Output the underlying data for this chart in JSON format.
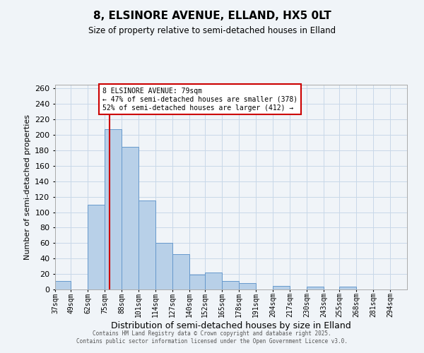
{
  "title": "8, ELSINORE AVENUE, ELLAND, HX5 0LT",
  "subtitle": "Size of property relative to semi-detached houses in Elland",
  "xlabel": "Distribution of semi-detached houses by size in Elland",
  "ylabel": "Number of semi-detached properties",
  "bar_labels": [
    "37sqm",
    "49sqm",
    "62sqm",
    "75sqm",
    "88sqm",
    "101sqm",
    "114sqm",
    "127sqm",
    "140sqm",
    "152sqm",
    "165sqm",
    "178sqm",
    "191sqm",
    "204sqm",
    "217sqm",
    "230sqm",
    "243sqm",
    "255sqm",
    "268sqm",
    "281sqm",
    "294sqm"
  ],
  "bar_values": [
    11,
    0,
    110,
    207,
    185,
    115,
    60,
    46,
    19,
    22,
    11,
    8,
    0,
    5,
    0,
    4,
    0,
    4,
    0,
    0,
    0
  ],
  "bar_color": "#b8d0e8",
  "bar_edge_color": "#6699cc",
  "vline_x": 79,
  "bin_edges": [
    37,
    49,
    62,
    75,
    88,
    101,
    114,
    127,
    140,
    152,
    165,
    178,
    191,
    204,
    217,
    230,
    243,
    255,
    268,
    281,
    294,
    307
  ],
  "annotation_title": "8 ELSINORE AVENUE: 79sqm",
  "annotation_line1": "← 47% of semi-detached houses are smaller (378)",
  "annotation_line2": "52% of semi-detached houses are larger (412) →",
  "annotation_box_color": "#cc0000",
  "ylim": [
    0,
    265
  ],
  "yticks": [
    0,
    20,
    40,
    60,
    80,
    100,
    120,
    140,
    160,
    180,
    200,
    220,
    240,
    260
  ],
  "footer1": "Contains HM Land Registry data © Crown copyright and database right 2025.",
  "footer2": "Contains public sector information licensed under the Open Government Licence v3.0.",
  "bg_color": "#f0f4f8",
  "grid_color": "#c8d8e8"
}
